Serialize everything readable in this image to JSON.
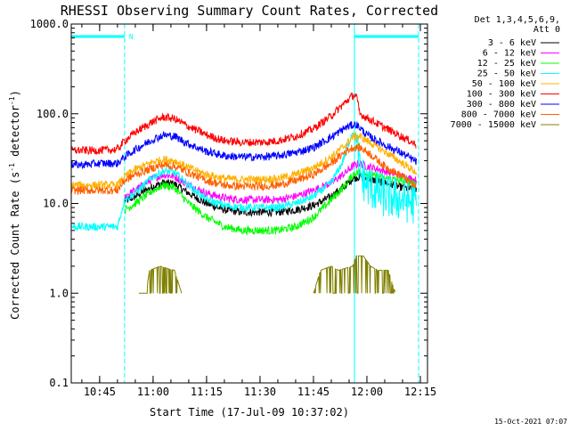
{
  "chart_data": {
    "type": "line",
    "title": "RHESSI Observing Summary Count Rates, Corrected",
    "xlabel": "Start Time (17-Jul-09 10:37:02)",
    "ylabel": "Corrected Count Rate (s^-1 detector^-1)",
    "ylabel_parts": {
      "main": "Corrected Count Rate (s",
      "sup1": "-1",
      "mid": " detector",
      "sup2": "-1",
      "end": ")"
    },
    "y_scale": "log",
    "ylim": [
      0.1,
      1000
    ],
    "y_ticks": [
      {
        "value": 0.1,
        "label": "0.1"
      },
      {
        "value": 1,
        "label": "1.0"
      },
      {
        "value": 10,
        "label": "10.0"
      },
      {
        "value": 100,
        "label": "100.0"
      },
      {
        "value": 1000,
        "label": "1000.0"
      }
    ],
    "xlim_minutes": [
      37.03,
      137.0
    ],
    "x_ticks": [
      {
        "value": 45,
        "label": "10:45"
      },
      {
        "value": 60,
        "label": "11:00"
      },
      {
        "value": 75,
        "label": "11:15"
      },
      {
        "value": 90,
        "label": "11:30"
      },
      {
        "value": 105,
        "label": "11:45"
      },
      {
        "value": 120,
        "label": "12:00"
      },
      {
        "value": 135,
        "label": "12:15"
      }
    ],
    "legend_header": [
      "Det 1,3,4,5,6,9,",
      "Att 0"
    ],
    "legend_position": "right",
    "night_marker": "N",
    "night_intervals": [
      [
        37.03,
        52.0
      ],
      [
        116.5,
        134.5
      ]
    ],
    "grid": false,
    "series": [
      {
        "name": "3 - 6 keV",
        "color": "#000000",
        "x": [
          37,
          50,
          52,
          55,
          60,
          63,
          66,
          70,
          75,
          80,
          85,
          90,
          95,
          100,
          105,
          110,
          114,
          116,
          117,
          118,
          120,
          125,
          130,
          134
        ],
        "y": [
          null,
          null,
          10.5,
          12,
          15.5,
          17,
          16.5,
          13,
          10,
          8.5,
          8,
          8,
          8,
          8.5,
          9.5,
          12,
          16,
          19,
          19.5,
          20,
          19,
          17,
          15,
          14
        ]
      },
      {
        "name": "6 - 12 keV",
        "color": "#ff00ff",
        "x": [
          37,
          50,
          52,
          55,
          60,
          63,
          66,
          70,
          75,
          80,
          85,
          90,
          95,
          100,
          105,
          110,
          114,
          116,
          117,
          118,
          120,
          125,
          130,
          134
        ],
        "y": [
          null,
          null,
          12,
          14,
          19,
          21,
          20,
          16,
          13,
          11.5,
          11,
          11,
          11,
          12,
          14,
          17,
          22,
          26,
          27,
          28,
          26,
          23,
          20,
          18
        ]
      },
      {
        "name": "12 - 25 keV",
        "color": "#00ff00",
        "x": [
          37,
          50,
          52,
          55,
          60,
          63,
          66,
          70,
          75,
          80,
          85,
          90,
          95,
          100,
          105,
          110,
          114,
          116,
          117,
          118,
          120,
          125,
          130,
          134
        ],
        "y": [
          null,
          null,
          8.5,
          10,
          14,
          16,
          15,
          10,
          7,
          5.5,
          5,
          5,
          5,
          5.5,
          7,
          11,
          16,
          21,
          22,
          22,
          21,
          19,
          18,
          17
        ]
      },
      {
        "name": "25 - 50 keV",
        "color": "#00ffff",
        "x": [
          37,
          40,
          45,
          50,
          52,
          55,
          60,
          63,
          66,
          70,
          75,
          80,
          85,
          90,
          95,
          100,
          105,
          110,
          113,
          115,
          116,
          117,
          118,
          120,
          125,
          130,
          134
        ],
        "y": [
          5.5,
          5.5,
          5.5,
          5.5,
          11,
          13,
          20,
          23,
          22,
          16,
          11,
          9.5,
          9,
          9,
          9,
          10,
          12,
          17,
          28,
          48,
          65,
          50,
          22,
          16,
          12,
          11,
          10
        ]
      },
      {
        "name": "50 - 100 keV",
        "color": "#ffb000",
        "x": [
          37,
          40,
          45,
          50,
          52,
          55,
          60,
          63,
          66,
          70,
          75,
          80,
          85,
          90,
          95,
          100,
          105,
          110,
          114,
          116,
          117,
          118,
          120,
          125,
          130,
          134
        ],
        "y": [
          16,
          16,
          16,
          16,
          20,
          24,
          29,
          31,
          30,
          25,
          21,
          19,
          18.5,
          18.5,
          19,
          21,
          25,
          33,
          45,
          55,
          56,
          56,
          50,
          38,
          28,
          22
        ]
      },
      {
        "name": "100 - 300 keV",
        "color": "#ff0000",
        "x": [
          37,
          40,
          45,
          50,
          52,
          55,
          60,
          63,
          66,
          70,
          75,
          80,
          85,
          90,
          95,
          100,
          105,
          110,
          114,
          116,
          117,
          118,
          120,
          125,
          130,
          134
        ],
        "y": [
          39,
          39,
          39,
          40,
          50,
          62,
          82,
          92,
          88,
          72,
          58,
          50,
          48,
          48,
          50,
          56,
          68,
          95,
          135,
          160,
          160,
          100,
          90,
          70,
          55,
          45
        ]
      },
      {
        "name": "300 - 800 keV",
        "color": "#0000ff",
        "x": [
          37,
          40,
          45,
          50,
          52,
          55,
          60,
          63,
          66,
          70,
          75,
          80,
          85,
          90,
          95,
          100,
          105,
          110,
          114,
          116,
          117,
          118,
          120,
          125,
          130,
          134
        ],
        "y": [
          27,
          27,
          28,
          28,
          33,
          40,
          52,
          58,
          56,
          46,
          38,
          34,
          33,
          33,
          34,
          37,
          42,
          55,
          70,
          75,
          76,
          70,
          58,
          45,
          36,
          29
        ]
      },
      {
        "name": "800 - 7000 keV",
        "color": "#ff6000",
        "x": [
          37,
          40,
          45,
          50,
          52,
          55,
          60,
          63,
          66,
          70,
          75,
          80,
          85,
          90,
          95,
          100,
          105,
          110,
          114,
          116,
          117,
          118,
          120,
          125,
          130,
          134
        ],
        "y": [
          14,
          14,
          14,
          14,
          18,
          21,
          25,
          27,
          26,
          22,
          18,
          16,
          15.5,
          15.5,
          16,
          18,
          21,
          28,
          38,
          42,
          42,
          42,
          38,
          26,
          20,
          15
        ]
      },
      {
        "name": "7000 - 15000 keV",
        "color": "#808000",
        "x": [
          37,
          53,
          56,
          58,
          59,
          62,
          66,
          68,
          70,
          72,
          102,
          105,
          107,
          110,
          112,
          116,
          117,
          119,
          121,
          123,
          126,
          128,
          137
        ],
        "y": [
          null,
          null,
          1.0,
          1.0,
          1.8,
          2.0,
          1.8,
          1.0,
          null,
          null,
          null,
          1.0,
          1.8,
          2.0,
          1.8,
          2.0,
          2.6,
          2.6,
          2.0,
          1.8,
          1.8,
          1.0,
          null
        ]
      }
    ]
  },
  "footer_timestamp": "15-Oct-2021 07:07"
}
